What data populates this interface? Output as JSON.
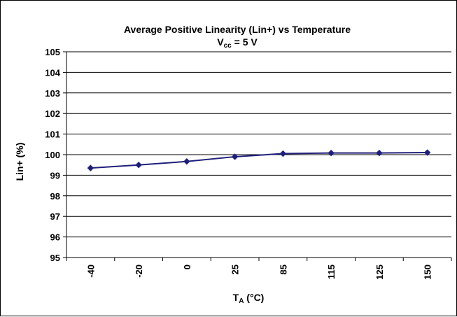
{
  "chart_data": {
    "type": "line",
    "title": "Average Positive Linearity (Lin+) vs Temperature",
    "subtitle": {
      "main": "V",
      "sub": "cc",
      "rest": " = 5 V"
    },
    "xlabel": {
      "main": "T",
      "sub": "A",
      "rest": " (°C)"
    },
    "ylabel": "Lin+ (%)",
    "categories": [
      "-40",
      "-20",
      "0",
      "25",
      "85",
      "115",
      "125",
      "150"
    ],
    "series": [
      {
        "values": [
          99.35,
          99.5,
          99.67,
          99.9,
          100.05,
          100.08,
          100.08,
          100.1
        ],
        "color": "#1f1f7a"
      }
    ],
    "ylim": [
      95,
      105
    ],
    "yticks": [
      95,
      96,
      97,
      98,
      99,
      100,
      101,
      102,
      103,
      104,
      105
    ],
    "grid": true,
    "legend": "none"
  }
}
